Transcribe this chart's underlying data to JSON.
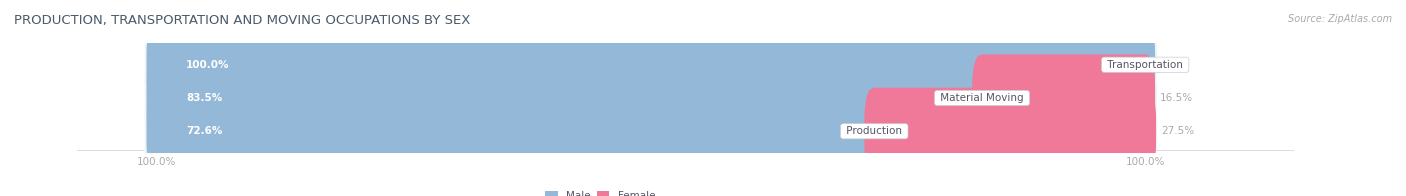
{
  "title": "PRODUCTION, TRANSPORTATION AND MOVING OCCUPATIONS BY SEX",
  "source": "Source: ZipAtlas.com",
  "categories": [
    "Transportation",
    "Material Moving",
    "Production"
  ],
  "male_values": [
    100.0,
    83.5,
    72.6
  ],
  "female_values": [
    0.0,
    16.5,
    27.5
  ],
  "male_color": "#94b8d8",
  "female_color": "#f07898",
  "female_color_light": "#f4aec0",
  "male_label": "Male",
  "female_label": "Female",
  "background_color": "#ffffff",
  "bar_bg_color": "#dde8f0",
  "row_bg_color": "#f0f5f8",
  "title_color": "#4a5a6a",
  "label_color": "#555566",
  "axis_color": "#aaaaaa",
  "title_fontsize": 9.5,
  "cat_fontsize": 7.5,
  "val_fontsize": 7.5,
  "axis_fontsize": 7.5,
  "bar_height": 0.62,
  "total_width": 100
}
